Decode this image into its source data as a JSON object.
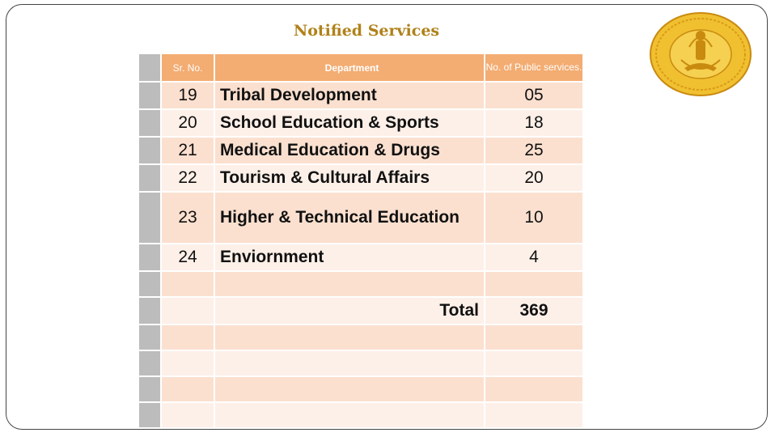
{
  "title": "Notified Services",
  "headers": {
    "sr_no": "Sr. No.",
    "department": "Department",
    "services": "No. of Public services."
  },
  "rows": [
    {
      "sr": "19",
      "department": "Tribal Development",
      "count": "05"
    },
    {
      "sr": "20",
      "department": "School Education & Sports",
      "count": "18"
    },
    {
      "sr": "21",
      "department": "Medical Education & Drugs",
      "count": "25"
    },
    {
      "sr": "22",
      "department": "Tourism & Cultural Affairs",
      "count": "20"
    },
    {
      "sr": "23",
      "department": "Higher & Technical Education",
      "count": "10"
    },
    {
      "sr": "24",
      "department": "Enviornment",
      "count": "4"
    }
  ],
  "total": {
    "label": "Total",
    "value": "369"
  },
  "colors": {
    "title": "#b0811a",
    "header": "#f3ac72",
    "row_odd": "#fbe0cf",
    "row_even": "#fdf0e8",
    "side_bar": "#bcbcbc",
    "seal": "#e8b220"
  },
  "seal": {
    "icon": "maharashtra-government-seal-icon"
  }
}
